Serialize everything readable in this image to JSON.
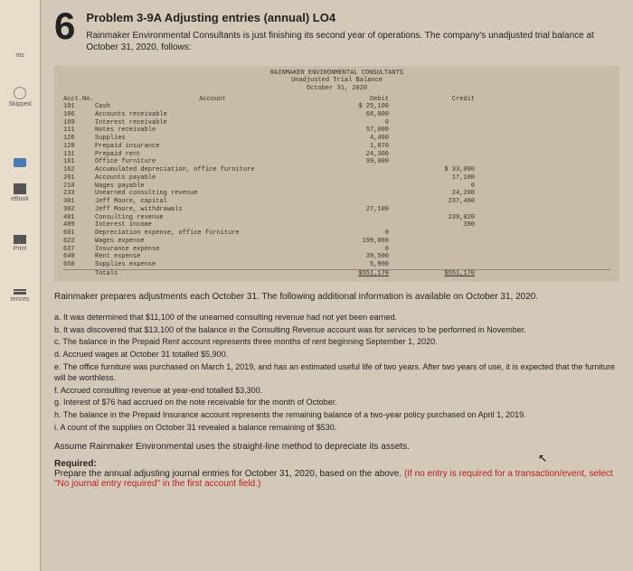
{
  "sidebar": {
    "items": [
      {
        "label": "nts",
        "icon": ""
      },
      {
        "label": "Skipped",
        "icon": "○"
      },
      {
        "label": "",
        "icon": "▬"
      },
      {
        "label": "eBook",
        "icon": "📖"
      },
      {
        "label": "Print",
        "icon": "🖶"
      },
      {
        "label": "rences",
        "icon": "☰"
      }
    ]
  },
  "problem": {
    "number": "6",
    "title": "Problem 3-9A Adjusting entries (annual) LO4",
    "intro": "Rainmaker Environmental Consultants is just finishing its second year of operations. The company's unadjusted trial balance at October 31, 2020, follows:"
  },
  "trial_balance": {
    "company": "RAINMAKER ENVIRONMENTAL CONSULTANTS",
    "statement": "Unadjusted Trial Balance",
    "date": "October 31, 2020",
    "col_acct": "Acct.No.",
    "col_account": "Account",
    "col_debit": "Debit",
    "col_credit": "Credit",
    "rows": [
      {
        "acct": "101",
        "name": "Cash",
        "debit": "$ 25,100",
        "credit": ""
      },
      {
        "acct": "106",
        "name": "Accounts receivable",
        "debit": "68,000",
        "credit": ""
      },
      {
        "acct": "109",
        "name": "Interest receivable",
        "debit": "0",
        "credit": ""
      },
      {
        "acct": "111",
        "name": "Notes receivable",
        "debit": "57,000",
        "credit": ""
      },
      {
        "acct": "126",
        "name": "Supplies",
        "debit": "4,400",
        "credit": ""
      },
      {
        "acct": "128",
        "name": "Prepaid insurance",
        "debit": "1,870",
        "credit": ""
      },
      {
        "acct": "131",
        "name": "Prepaid rent",
        "debit": "24,300",
        "credit": ""
      },
      {
        "acct": "161",
        "name": "Office furniture",
        "debit": "99,000",
        "credit": ""
      },
      {
        "acct": "162",
        "name": "Accumulated depreciation, office furniture",
        "debit": "",
        "credit": "$ 33,000"
      },
      {
        "acct": "201",
        "name": "Accounts payable",
        "debit": "",
        "credit": "17,100"
      },
      {
        "acct": "210",
        "name": "Wages payable",
        "debit": "",
        "credit": "0"
      },
      {
        "acct": "233",
        "name": "Unearned consulting revenue",
        "debit": "",
        "credit": "24,200"
      },
      {
        "acct": "301",
        "name": "Jeff Moore, capital",
        "debit": "",
        "credit": "237,460"
      },
      {
        "acct": "302",
        "name": "Jeff Moore, withdrawals",
        "debit": "27,100",
        "credit": ""
      },
      {
        "acct": "401",
        "name": "Consulting revenue",
        "debit": "",
        "credit": "239,020"
      },
      {
        "acct": "409",
        "name": "Interest income",
        "debit": "",
        "credit": "390"
      },
      {
        "acct": "601",
        "name": "Depreciation expense, office furniture",
        "debit": "0",
        "credit": ""
      },
      {
        "acct": "622",
        "name": "Wages expense",
        "debit": "199,000",
        "credit": ""
      },
      {
        "acct": "637",
        "name": "Insurance expense",
        "debit": "0",
        "credit": ""
      },
      {
        "acct": "640",
        "name": "Rent expense",
        "debit": "39,500",
        "credit": ""
      },
      {
        "acct": "650",
        "name": "Supplies expense",
        "debit": "5,900",
        "credit": ""
      }
    ],
    "totals_label": "Totals",
    "totals_debit": "$551,170",
    "totals_credit": "$551,170"
  },
  "narrative": "Rainmaker prepares adjustments each October 31. The following additional information is available on October 31, 2020.",
  "info_items": [
    "a. It was determined that $11,100 of the unearned consulting revenue had not yet been earned.",
    "b. It was discovered that $13,100 of the balance in the Consulting Revenue account was for services to be performed in November.",
    "c. The balance in the Prepaid Rent account represents three months of rent beginning September 1, 2020.",
    "d. Accrued wages at October 31 totalled $5,900.",
    "e. The office furniture was purchased on March 1, 2019, and has an estimated useful life of two years. After two years of use, it is expected that the furniture will be worthless.",
    "f. Accrued consulting revenue at year-end totalled $3,300.",
    "g. Interest of $76 had accrued on the note receivable for the month of October.",
    "h. The balance in the Prepaid Insurance account represents the remaining balance of a two-year policy purchased on April 1, 2019.",
    "i. A count of the supplies on October 31 revealed a balance remaining of $530."
  ],
  "assume": "Assume Rainmaker Environmental uses the straight-line method to depreciate its assets.",
  "required": {
    "label": "Required:",
    "text_before": "Prepare the annual adjusting journal entries for October 31, 2020, based on the above. ",
    "red_text": "(If no entry is required for a transaction/event, select \"No journal entry required\" in the first account field.)"
  }
}
